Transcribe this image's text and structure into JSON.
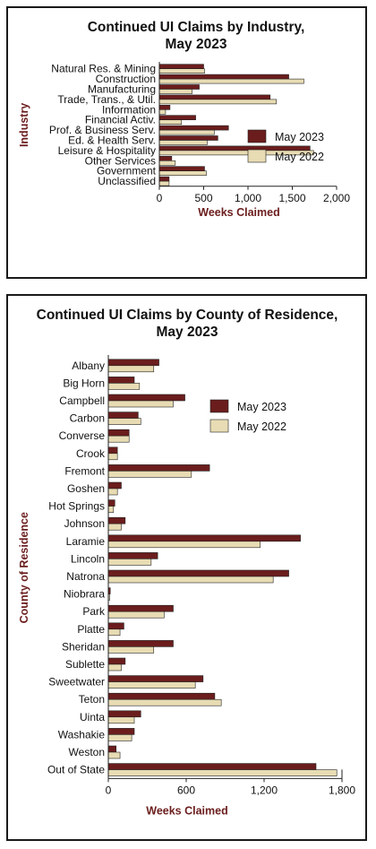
{
  "chart_data": [
    {
      "type": "bar",
      "orientation": "horizontal",
      "title": [
        "Continued UI Claims by Industry,",
        "May 2023"
      ],
      "xlabel": "Weeks Claimed",
      "ylabel": "Industry",
      "xlim": [
        0,
        2000
      ],
      "xticks": [
        0,
        500,
        1000,
        1500,
        2000
      ],
      "xtick_labels": [
        "0",
        "500",
        "1,000",
        "1,500",
        "2,000"
      ],
      "legend_position": "right",
      "categories": [
        "Natural Res. & Mining",
        "Construction",
        "Manufacturing",
        "Trade, Trans., & Util.",
        "Information",
        "Financial Activ.",
        "Prof. & Business Serv.",
        "Ed. & Health Serv.",
        "Leisure & Hospitality",
        "Other Services",
        "Government",
        "Unclassified"
      ],
      "series": [
        {
          "name": "May 2023",
          "color": "#6b1d1d",
          "values": [
            500,
            1460,
            450,
            1250,
            120,
            410,
            780,
            660,
            1700,
            140,
            510,
            110
          ]
        },
        {
          "name": "May 2022",
          "color": "#e8dcb4",
          "values": [
            510,
            1630,
            370,
            1320,
            70,
            250,
            620,
            540,
            1740,
            180,
            530,
            110
          ]
        }
      ]
    },
    {
      "type": "bar",
      "orientation": "horizontal",
      "title": [
        "Continued UI Claims by County of Residence,",
        "May 2023"
      ],
      "xlabel": "Weeks Claimed",
      "ylabel": "County of Residence",
      "xlim": [
        0,
        1800
      ],
      "xticks": [
        0,
        600,
        1200,
        1800
      ],
      "xtick_labels": [
        "0",
        "600",
        "1,200",
        "1,800"
      ],
      "legend_position": "upper-right",
      "categories": [
        "Albany",
        "Big Horn",
        "Campbell",
        "Carbon",
        "Converse",
        "Crook",
        "Fremont",
        "Goshen",
        "Hot Springs",
        "Johnson",
        "Laramie",
        "Lincoln",
        "Natrona",
        "Niobrara",
        "Park",
        "Platte",
        "Sheridan",
        "Sublette",
        "Sweetwater",
        "Teton",
        "Uinta",
        "Washakie",
        "Weston",
        "Out of State"
      ],
      "series": [
        {
          "name": "May 2023",
          "color": "#6b1d1d",
          "values": [
            390,
            200,
            590,
            230,
            160,
            70,
            780,
            100,
            50,
            130,
            1480,
            380,
            1390,
            15,
            500,
            120,
            500,
            130,
            730,
            820,
            250,
            200,
            60,
            1600
          ]
        },
        {
          "name": "May 2022",
          "color": "#e8dcb4",
          "values": [
            350,
            240,
            500,
            250,
            160,
            70,
            640,
            70,
            40,
            100,
            1170,
            330,
            1270,
            10,
            430,
            90,
            350,
            100,
            670,
            870,
            200,
            180,
            90,
            1760
          ]
        }
      ]
    }
  ]
}
